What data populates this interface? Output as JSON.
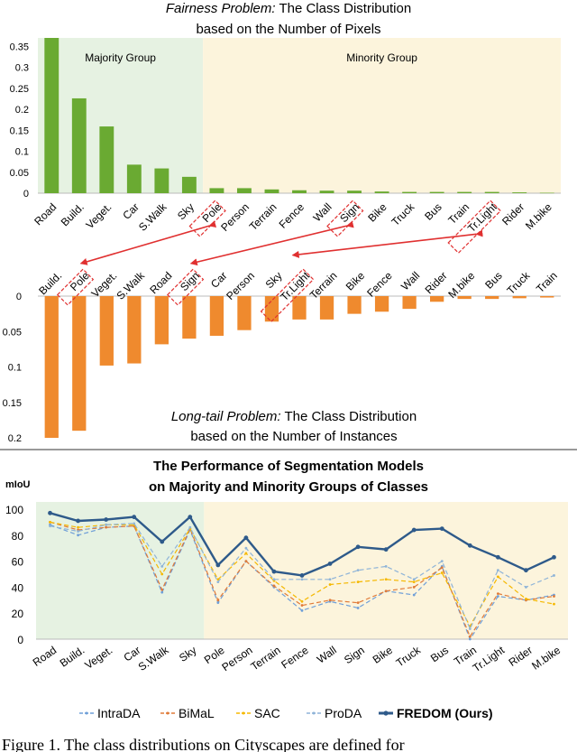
{
  "colors": {
    "pixel_bar": "#6aaa32",
    "instance_bar": "#ef8a2e",
    "majority_bg": "#e6f2e2",
    "minority_bg": "#fcf4dc",
    "link_red": "#e03030",
    "fredom": "#2e5a8a",
    "intrada": "#6f9fd8",
    "bimal": "#e07b39",
    "sac": "#f5b800",
    "proda": "#8fb4d8"
  },
  "chart_data": [
    {
      "type": "bar",
      "title_italic": "Fairness Problem:",
      "title_rest": " The Class Distribution",
      "subtitle": "based on the Number of Pixels",
      "group_labels": [
        "Majority Group",
        "Minority Group"
      ],
      "majority_count": 6,
      "categories": [
        "Road",
        "Build.",
        "Veget.",
        "Car",
        "S.Walk",
        "Sky",
        "Pole",
        "Person",
        "Terrain",
        "Fence",
        "Wall",
        "Sign",
        "Bike",
        "Truck",
        "Bus",
        "Train",
        "Tr.Light",
        "Rider",
        "M.bike"
      ],
      "highlighted": [
        "Pole",
        "Sign",
        "Tr.Light"
      ],
      "values": [
        0.37,
        0.226,
        0.159,
        0.068,
        0.059,
        0.039,
        0.012,
        0.012,
        0.009,
        0.007,
        0.006,
        0.006,
        0.004,
        0.003,
        0.003,
        0.003,
        0.003,
        0.002,
        0.001
      ],
      "yticks": [
        "0",
        "0.05",
        "0.1",
        "0.15",
        "0.2",
        "0.25",
        "0.3",
        "0.35"
      ],
      "ylim": [
        0,
        0.37
      ]
    },
    {
      "type": "bar",
      "title_italic": "Long-tail Problem:",
      "title_rest": " The Class Distribution",
      "subtitle": "based on the Number of Instances",
      "categories": [
        "Build.",
        "Pole",
        "Veget.",
        "S.Walk",
        "Road",
        "Sign",
        "Car",
        "Person",
        "Sky",
        "Tr.Light",
        "Terrain",
        "Bike",
        "Fence",
        "Wall",
        "Rider",
        "M.bike",
        "Bus",
        "Truck",
        "Train"
      ],
      "highlighted": [
        "Pole",
        "Sign",
        "Tr.Light"
      ],
      "values": [
        0.2,
        0.19,
        0.098,
        0.095,
        0.068,
        0.06,
        0.056,
        0.048,
        0.036,
        0.033,
        0.033,
        0.025,
        0.022,
        0.018,
        0.008,
        0.004,
        0.004,
        0.003,
        0.002
      ],
      "yticks": [
        "0",
        "0.05",
        "0.1",
        "0.15",
        "0.2"
      ],
      "ylim": [
        0,
        0.2
      ]
    },
    {
      "type": "line",
      "title": "The Performance of Segmentation Models",
      "subtitle": "on Majority and Minority Groups of Classes",
      "ylabel": "mIoU",
      "yticks": [
        "0",
        "20",
        "40",
        "60",
        "80",
        "100"
      ],
      "ylim": [
        0,
        100
      ],
      "majority_count": 6,
      "categories": [
        "Road",
        "Build.",
        "Veget.",
        "Car",
        "S.Walk",
        "Sky",
        "Pole",
        "Person",
        "Terrain",
        "Fence",
        "Wall",
        "Sign",
        "Bike",
        "Truck",
        "Bus",
        "Train",
        "Tr.Light",
        "Rider",
        "M.bike"
      ],
      "series": [
        {
          "name": "IntraDA",
          "key": "intrada",
          "dash": true,
          "values": [
            88,
            80,
            86,
            87,
            36,
            84,
            28,
            60,
            40,
            22,
            29,
            24,
            37,
            34,
            56,
            0,
            33,
            30,
            34
          ]
        },
        {
          "name": "BiMaL",
          "key": "bimal",
          "dash": true,
          "values": [
            90,
            84,
            86,
            87,
            38,
            85,
            30,
            60,
            41,
            26,
            30,
            28,
            37,
            40,
            55,
            2,
            35,
            30,
            33
          ]
        },
        {
          "name": "SAC",
          "key": "sac",
          "dash": true,
          "values": [
            90,
            86,
            88,
            88,
            50,
            85,
            46,
            66,
            45,
            29,
            42,
            44,
            46,
            44,
            51,
            10,
            48,
            31,
            27
          ]
        },
        {
          "name": "ProDA",
          "key": "proda",
          "dash": true,
          "values": [
            87,
            83,
            88,
            89,
            56,
            86,
            44,
            70,
            46,
            46,
            46,
            53,
            56,
            46,
            60,
            8,
            53,
            40,
            49
          ]
        },
        {
          "name": "FREDOM (Ours)",
          "key": "fredom",
          "dash": false,
          "values": [
            97,
            91,
            92,
            94,
            75,
            94,
            57,
            78,
            52,
            49,
            58,
            71,
            69,
            84,
            85,
            72,
            63,
            53,
            63
          ]
        }
      ]
    }
  ],
  "caption": "Figure 1. The class distributions on Cityscapes are defined for"
}
